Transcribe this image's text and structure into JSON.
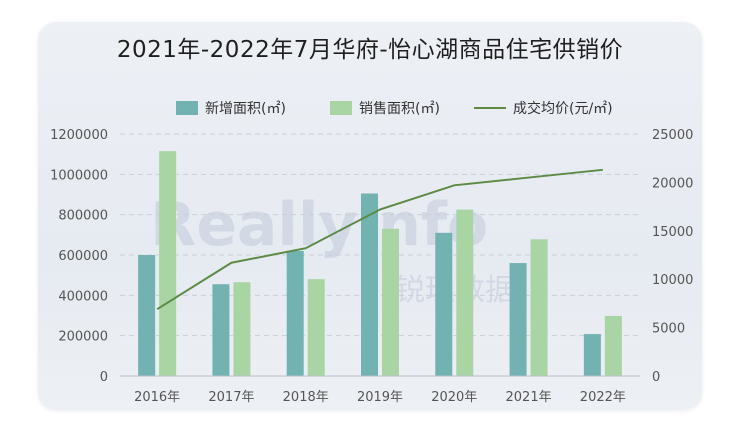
{
  "title": "2021年-2022年7月华府-怡心湖商品住宅供销价",
  "watermark": {
    "brand": "Reallyinfo",
    "brand_cn": "锐理数据"
  },
  "colors": {
    "new_area": "#72b2b0",
    "sales_area": "#a8d5a3",
    "price_line": "#5d8b45",
    "grid": "#c9cfd8"
  },
  "chart_data": {
    "type": "bar",
    "categories": [
      "2016年",
      "2017年",
      "2018年",
      "2019年",
      "2020年",
      "2021年",
      "2022年"
    ],
    "series": [
      {
        "name": "新增面积(㎡)",
        "type": "bar",
        "axis": "left",
        "values": [
          600000,
          455000,
          620000,
          905000,
          710000,
          560000,
          208000
        ]
      },
      {
        "name": "销售面积(㎡)",
        "type": "bar",
        "axis": "left",
        "values": [
          1115000,
          465000,
          480000,
          730000,
          825000,
          678000,
          298000
        ]
      },
      {
        "name": "成交均价(元/㎡)",
        "type": "line",
        "axis": "right",
        "values": [
          6900,
          11700,
          13200,
          17200,
          19700,
          20500,
          21300
        ]
      }
    ],
    "y_left": {
      "min": 0,
      "max": 1200000,
      "ticks": [
        "0",
        "200000",
        "400000",
        "600000",
        "800000",
        "1000000",
        "1200000"
      ]
    },
    "y_right": {
      "min": 0,
      "max": 25000,
      "ticks": [
        "0",
        "5000",
        "10000",
        "15000",
        "20000",
        "25000"
      ]
    },
    "legend_position": "top-right",
    "grid": true
  }
}
